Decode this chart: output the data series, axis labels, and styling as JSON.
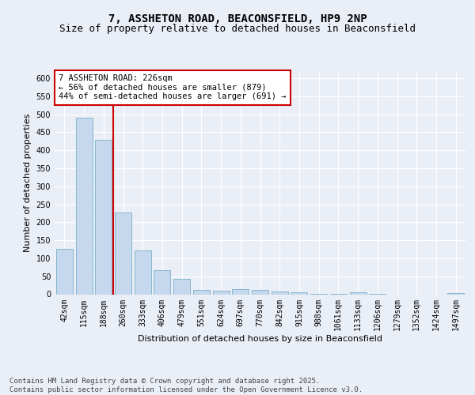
{
  "title_line1": "7, ASSHETON ROAD, BEACONSFIELD, HP9 2NP",
  "title_line2": "Size of property relative to detached houses in Beaconsfield",
  "xlabel": "Distribution of detached houses by size in Beaconsfield",
  "ylabel": "Number of detached properties",
  "categories": [
    "42sqm",
    "115sqm",
    "188sqm",
    "260sqm",
    "333sqm",
    "406sqm",
    "479sqm",
    "551sqm",
    "624sqm",
    "697sqm",
    "770sqm",
    "842sqm",
    "915sqm",
    "988sqm",
    "1061sqm",
    "1133sqm",
    "1206sqm",
    "1279sqm",
    "1352sqm",
    "1424sqm",
    "1497sqm"
  ],
  "values": [
    127,
    490,
    430,
    228,
    122,
    68,
    43,
    13,
    10,
    14,
    11,
    8,
    6,
    1,
    1,
    5,
    1,
    0,
    0,
    0,
    3
  ],
  "bar_color": "#c5d8ed",
  "bar_edge_color": "#7aafc8",
  "vline_color": "#cc0000",
  "annotation_text": "7 ASSHETON ROAD: 226sqm\n← 56% of detached houses are smaller (879)\n44% of semi-detached houses are larger (691) →",
  "annotation_box_color": "#ffffff",
  "annotation_box_edge": "#cc0000",
  "ylim": [
    0,
    620
  ],
  "yticks": [
    0,
    50,
    100,
    150,
    200,
    250,
    300,
    350,
    400,
    450,
    500,
    550,
    600
  ],
  "footnote": "Contains HM Land Registry data © Crown copyright and database right 2025.\nContains public sector information licensed under the Open Government Licence v3.0.",
  "bg_color": "#eaeff7",
  "plot_bg_color": "#eaeff7",
  "grid_color": "#ffffff",
  "title_fontsize": 10,
  "subtitle_fontsize": 9,
  "axis_label_fontsize": 8,
  "tick_fontsize": 7,
  "annotation_fontsize": 7.5,
  "footnote_fontsize": 6.5
}
